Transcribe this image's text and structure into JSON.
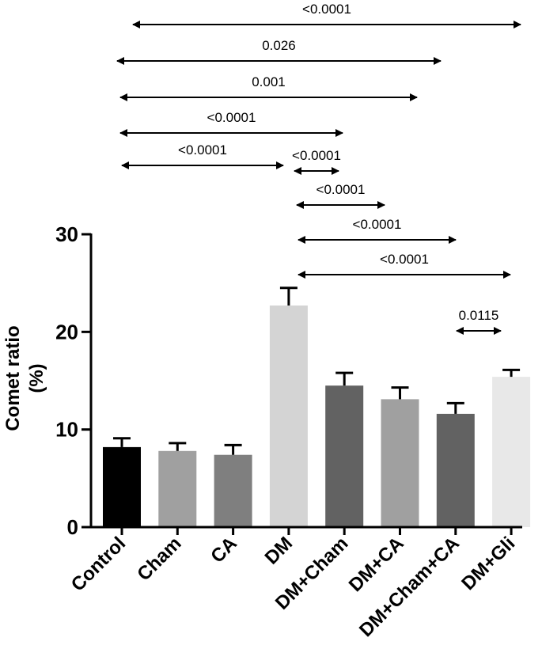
{
  "chart_data": {
    "type": "bar",
    "title": "",
    "xlabel": "",
    "ylabel_line1": "Comet ratio",
    "ylabel_line2": "(%)",
    "ylim": [
      0,
      30
    ],
    "yticks": [
      0,
      10,
      20,
      30
    ],
    "categories": [
      "Control",
      "Cham",
      "CA",
      "DM",
      "DM+Cham",
      "DM+CA",
      "DM+Cham+CA",
      "DM+Gli"
    ],
    "values": [
      8.2,
      7.8,
      7.4,
      22.7,
      14.5,
      13.1,
      11.6,
      15.4
    ],
    "errors": [
      0.9,
      0.8,
      1.0,
      1.8,
      1.3,
      1.2,
      1.1,
      0.7
    ],
    "colors": [
      "#000000",
      "#a0a0a0",
      "#7f7f7f",
      "#d4d4d4",
      "#626262",
      "#a0a0a0",
      "#626262",
      "#e8e8e8"
    ],
    "comparisons": [
      {
        "from": "Control",
        "to": "DM+Gli",
        "label": "<0.0001"
      },
      {
        "from": "Control",
        "to": "DM+Cham+CA",
        "label": "0.026"
      },
      {
        "from": "Control",
        "to": "DM+CA",
        "label": "0.001"
      },
      {
        "from": "Control",
        "to": "DM+Cham",
        "label": "<0.0001"
      },
      {
        "from": "Control",
        "to": "DM",
        "label": "<0.0001"
      },
      {
        "from": "DM",
        "to": "DM+Cham",
        "label": "<0.0001"
      },
      {
        "from": "DM",
        "to": "DM+CA",
        "label": "<0.0001"
      },
      {
        "from": "DM",
        "to": "DM+Cham+CA",
        "label": "<0.0001"
      },
      {
        "from": "DM",
        "to": "DM+Gli",
        "label": "<0.0001"
      },
      {
        "from": "DM+Cham+CA",
        "to": "DM+Gli",
        "label": "0.0115"
      }
    ]
  }
}
